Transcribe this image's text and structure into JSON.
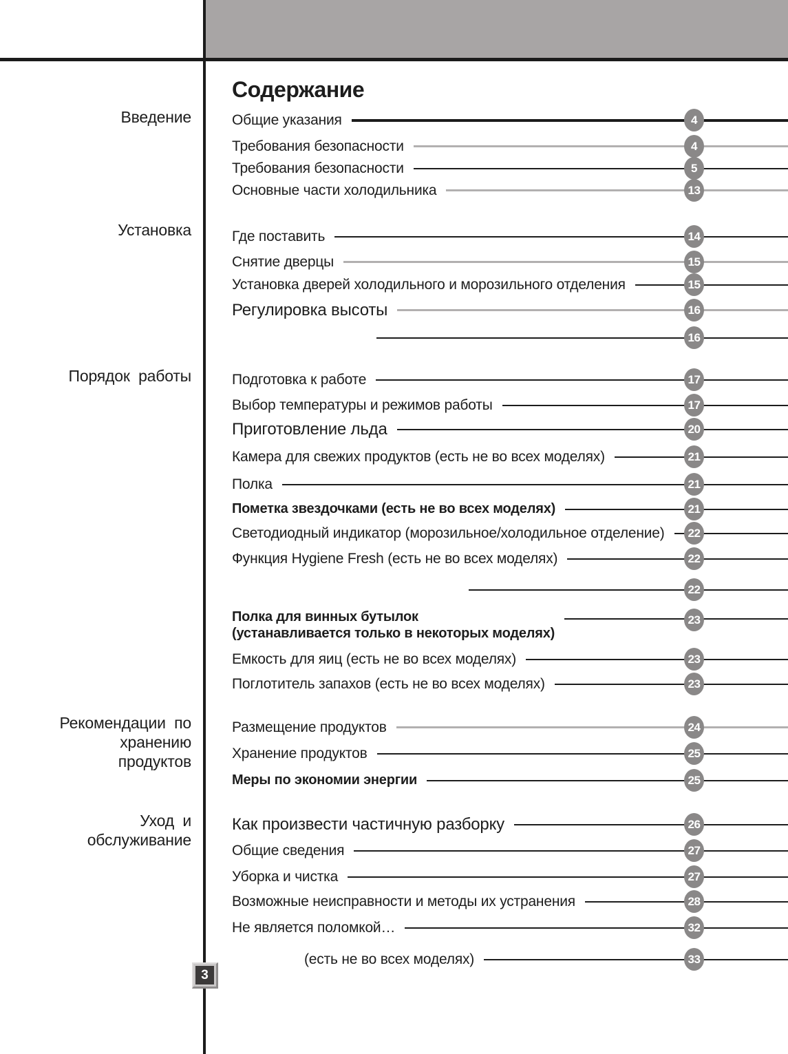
{
  "header": {
    "title": "Содержание"
  },
  "footer": {
    "page_number": "3"
  },
  "colors": {
    "bar_gray": "#a8a5a5",
    "rule_black": "#1b1b1b",
    "line_dark": "#1c1c1c",
    "line_gray": "#b2b0b0",
    "badge_gray": "#8a8888",
    "page_badge_dark": "#3c3a3a",
    "page_badge_frame": "#cac8c8",
    "text": "#1d1d1d"
  },
  "sections": [
    {
      "label_lines": [
        "Введение"
      ],
      "items": [
        {
          "label": "Общие указания",
          "page": "4"
        },
        {
          "label": "Требования безопасности",
          "page": "4"
        },
        {
          "label": "Требования безопасности",
          "page": "5"
        },
        {
          "label": "Основные части холодильника",
          "page": "13"
        }
      ]
    },
    {
      "label_lines": [
        "Установка"
      ],
      "items": [
        {
          "label": "Где поставить",
          "page": "14"
        },
        {
          "label": "Снятие дверцы",
          "page": "15"
        },
        {
          "label": "Установка дверей холодильного и морозильного отделения",
          "page": "15"
        },
        {
          "label": "Регулировка высоты",
          "page": "16"
        },
        {
          "label": "",
          "page": "16"
        }
      ]
    },
    {
      "label_lines": [
        "Порядок  работы"
      ],
      "items": [
        {
          "label": "Подготовка к работе",
          "page": "17"
        },
        {
          "label": "Выбор температуры и режимов работы",
          "page": "17"
        },
        {
          "label": "Приготовление льда",
          "page": "20"
        },
        {
          "label": "Камера для свежих продуктов (есть не во всех моделях)",
          "page": "21"
        },
        {
          "label": "Полка",
          "page": "21"
        },
        {
          "label": "Пометка звездочками  (есть не во всех моделях)",
          "page": "21"
        },
        {
          "label": "Светодиодный индикатор (морозильное/холодильное отделение)",
          "page": "22"
        },
        {
          "label": "Функция Hygiene Fresh (есть не во всех моделях)",
          "page": "22"
        },
        {
          "label": "",
          "page": "22"
        },
        {
          "label": "Полка для винных бутылок",
          "label2": "(устанавливается только в некоторых моделях)",
          "page": "23"
        },
        {
          "label": "Емкость для яиц (есть не во всех моделях)",
          "page": "23"
        },
        {
          "label": "Поглотитель запахов (есть не во всех моделях)",
          "page": "23"
        }
      ]
    },
    {
      "label_lines": [
        "Рекомендации  по",
        "хранению",
        "продуктов"
      ],
      "items": [
        {
          "label": "Размещение продуктов",
          "page": "24"
        },
        {
          "label": "Хранение продуктов",
          "page": "25"
        },
        {
          "label": "Меры по экономии энергии",
          "page": "25"
        }
      ]
    },
    {
      "label_lines": [
        "Уход  и",
        "обслуживание"
      ],
      "items": [
        {
          "label": "Как произвести частичную разборку",
          "page": "26"
        },
        {
          "label": "Общие  сведения",
          "page": "27"
        },
        {
          "label": "Уборка  и  чистка",
          "page": "27"
        },
        {
          "label": "Возможные  неисправности  и  методы  их  устранения",
          "page": "28"
        },
        {
          "label": "Не является поломкой…",
          "page": "32"
        },
        {
          "label": "(есть не во всех моделях)",
          "page": "33"
        }
      ]
    }
  ]
}
